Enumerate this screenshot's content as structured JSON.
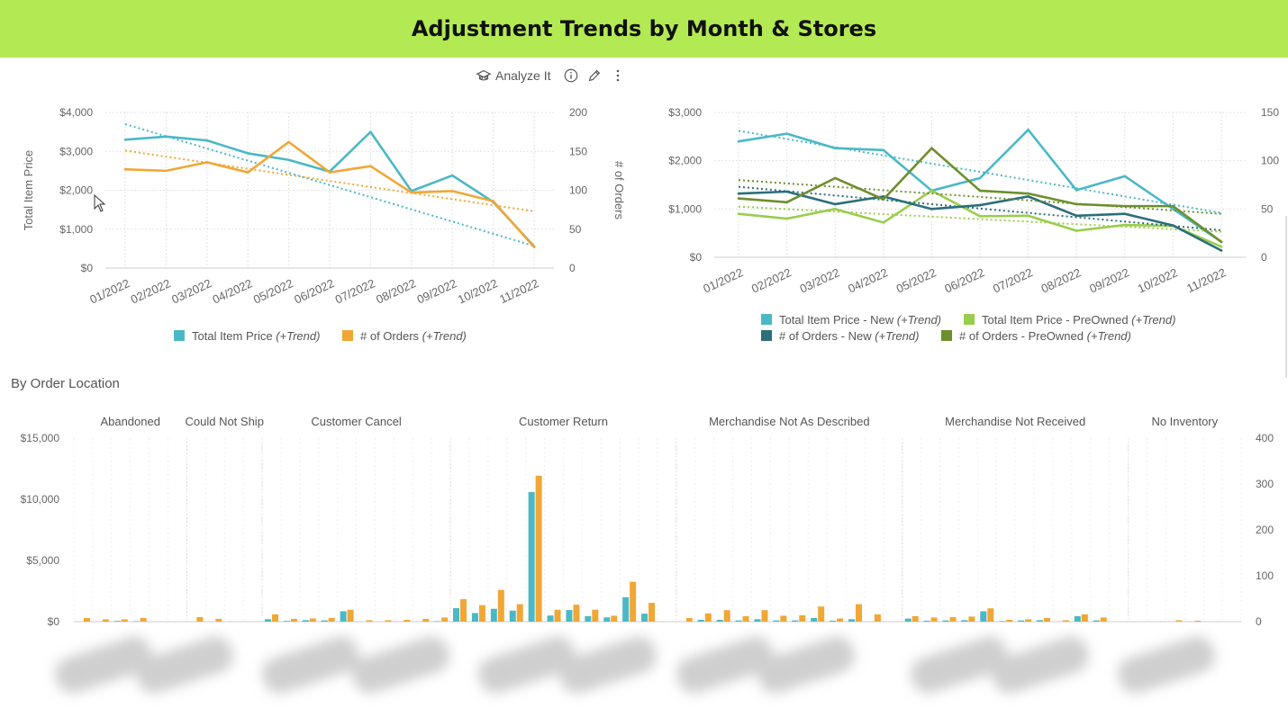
{
  "title": "Adjustment Trends by Month & Stores",
  "toolbar": {
    "analyze_label": "Analyze It",
    "icons": [
      "analyze-icon",
      "info-icon",
      "edit-icon",
      "more-icon"
    ]
  },
  "colors": {
    "header_bg": "#b3ea53",
    "teal": "#4bb8c6",
    "orange": "#f0a735",
    "light_green": "#9acd4c",
    "dark_teal": "#2c6e7a",
    "olive": "#6d8f2c"
  },
  "section_title": "By Order Location",
  "chart_data": [
    {
      "id": "chart1",
      "type": "line",
      "categories": [
        "01/2022",
        "02/2022",
        "03/2022",
        "04/2022",
        "05/2022",
        "06/2022",
        "07/2022",
        "08/2022",
        "09/2022",
        "10/2022",
        "11/2022"
      ],
      "series": [
        {
          "name": "Total Item Price",
          "suffix": "(+Trend)",
          "axis": "left",
          "color": "#4bb8c6",
          "values": [
            3300,
            3380,
            3280,
            2950,
            2780,
            2480,
            3500,
            1980,
            2380,
            1700,
            560
          ],
          "trend": [
            3700,
            570
          ]
        },
        {
          "name": "# of Orders",
          "suffix": "(+Trend)",
          "axis": "right",
          "color": "#f0a735",
          "values": [
            127,
            125,
            136,
            123,
            162,
            123,
            131,
            97,
            99,
            86,
            27
          ],
          "trend": [
            151,
            73
          ]
        }
      ],
      "y_left": {
        "label": "Total Item Price",
        "min": 0,
        "max": 4000,
        "ticks": [
          "$0",
          "$1,000",
          "$2,000",
          "$3,000",
          "$4,000"
        ]
      },
      "y_right": {
        "label": "# of Orders",
        "min": 0,
        "max": 200,
        "ticks": [
          "0",
          "50",
          "100",
          "150",
          "200"
        ]
      }
    },
    {
      "id": "chart2",
      "type": "line",
      "categories": [
        "01/2022",
        "02/2022",
        "03/2022",
        "04/2022",
        "05/2022",
        "06/2022",
        "07/2022",
        "08/2022",
        "09/2022",
        "10/2022",
        "11/2022"
      ],
      "series": [
        {
          "name": "Total Item Price - New",
          "suffix": "(+Trend)",
          "axis": "left",
          "color": "#4bb8c6",
          "values": [
            2400,
            2560,
            2260,
            2220,
            1380,
            1640,
            2640,
            1390,
            1680,
            1000,
            320
          ],
          "trend": [
            2620,
            920
          ]
        },
        {
          "name": "Total Item Price - PreOwned",
          "suffix": "(+Trend)",
          "axis": "left",
          "color": "#9acd4c",
          "values": [
            900,
            800,
            1000,
            720,
            1380,
            850,
            860,
            550,
            670,
            650,
            220
          ],
          "trend": [
            1050,
            530
          ]
        },
        {
          "name": "# of Orders - New",
          "suffix": "(+Trend)",
          "axis": "right",
          "color": "#2c6e7a",
          "values": [
            66,
            68,
            55,
            63,
            50,
            54,
            63,
            43,
            45,
            33,
            7
          ],
          "trend": [
            73,
            28
          ]
        },
        {
          "name": "# of Orders - PreOwned",
          "suffix": "(+Trend)",
          "axis": "right",
          "color": "#6d8f2c",
          "values": [
            61,
            57,
            82,
            60,
            113,
            69,
            66,
            55,
            53,
            53,
            16
          ],
          "trend": [
            80,
            45
          ]
        }
      ],
      "y_left": {
        "min": 0,
        "max": 3000,
        "ticks": [
          "$0",
          "$1,000",
          "$2,000",
          "$3,000"
        ]
      },
      "y_right": {
        "min": 0,
        "max": 150,
        "ticks": [
          "0",
          "50",
          "100",
          "150"
        ]
      }
    },
    {
      "id": "chart3",
      "type": "bar",
      "groups": [
        "Abandoned",
        "Could Not Ship",
        "Customer Cancel",
        "Customer Return",
        "Merchandise Not As Described",
        "Merchandise Not Received",
        "No Inventory"
      ],
      "group_sizes": [
        6,
        4,
        10,
        12,
        12,
        12,
        6
      ],
      "series": [
        {
          "name": "Total Item Price",
          "axis": "left",
          "color": "#4bb8c6",
          "values": [
            0,
            0,
            60,
            40,
            0,
            0,
            0,
            0,
            0,
            0,
            200,
            60,
            120,
            100,
            850,
            0,
            0,
            0,
            0,
            40,
            1100,
            700,
            1050,
            900,
            10600,
            500,
            950,
            450,
            350,
            2000,
            650,
            0,
            0,
            150,
            150,
            100,
            200,
            100,
            100,
            300,
            80,
            200,
            0,
            0,
            250,
            80,
            100,
            120,
            850,
            50,
            100,
            120,
            0,
            450,
            100,
            0,
            0,
            0,
            0,
            0,
            0,
            0
          ]
        },
        {
          "name": "# of Orders",
          "axis": "right",
          "color": "#f0a735",
          "values": [
            8,
            5,
            5,
            8,
            0,
            0,
            10,
            6,
            0,
            0,
            16,
            6,
            7,
            8,
            26,
            3,
            3,
            4,
            6,
            9,
            49,
            36,
            69,
            38,
            318,
            26,
            37,
            26,
            13,
            87,
            41,
            0,
            8,
            18,
            25,
            12,
            25,
            13,
            14,
            33,
            7,
            38,
            16,
            0,
            12,
            9,
            10,
            11,
            29,
            4,
            5,
            8,
            3,
            16,
            9,
            0,
            0,
            0,
            3,
            2,
            0,
            0
          ]
        }
      ],
      "y_left": {
        "min": 0,
        "max": 15000,
        "ticks": [
          "$0",
          "$5,000",
          "$10,000",
          "$15,000"
        ]
      },
      "y_right": {
        "min": 0,
        "max": 400,
        "ticks": [
          "0",
          "100",
          "200",
          "300",
          "400"
        ]
      }
    }
  ]
}
